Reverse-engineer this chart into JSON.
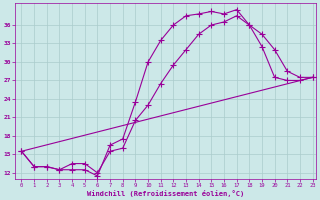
{
  "xlabel": "Windchill (Refroidissement éolien,°C)",
  "bg_color": "#cce8e8",
  "line_color": "#990099",
  "grid_color": "#aacccc",
  "curve1_x": [
    0,
    1,
    2,
    3,
    4,
    5,
    6,
    7,
    8,
    9,
    10,
    11,
    12,
    13,
    14,
    15,
    16,
    17,
    18,
    19,
    20,
    21,
    22,
    23
  ],
  "curve1_y": [
    15.5,
    13.0,
    13.0,
    12.5,
    12.5,
    12.5,
    11.5,
    16.5,
    17.5,
    23.5,
    30.0,
    33.5,
    36.0,
    37.5,
    37.8,
    38.2,
    37.8,
    38.5,
    36.0,
    32.5,
    27.5,
    27.0,
    27.0,
    27.5
  ],
  "curve2_x": [
    0,
    1,
    2,
    3,
    4,
    5,
    6,
    7,
    8,
    9,
    10,
    11,
    12,
    13,
    14,
    15,
    16,
    17,
    18,
    19,
    20,
    21,
    22,
    23
  ],
  "curve2_y": [
    15.5,
    13.0,
    13.0,
    12.5,
    13.5,
    13.5,
    12.0,
    15.5,
    16.0,
    20.5,
    23.0,
    26.5,
    29.5,
    32.0,
    34.5,
    36.0,
    36.5,
    37.5,
    36.0,
    34.5,
    32.0,
    28.5,
    27.5,
    27.5
  ],
  "curve3_x": [
    0,
    23
  ],
  "curve3_y": [
    15.5,
    27.5
  ],
  "xlim": [
    0,
    23
  ],
  "ylim": [
    11,
    39.5
  ],
  "yticks": [
    12,
    15,
    18,
    21,
    24,
    27,
    30,
    33,
    36
  ],
  "xticks": [
    0,
    1,
    2,
    3,
    4,
    5,
    6,
    7,
    8,
    9,
    10,
    11,
    12,
    13,
    14,
    15,
    16,
    17,
    18,
    19,
    20,
    21,
    22,
    23
  ]
}
